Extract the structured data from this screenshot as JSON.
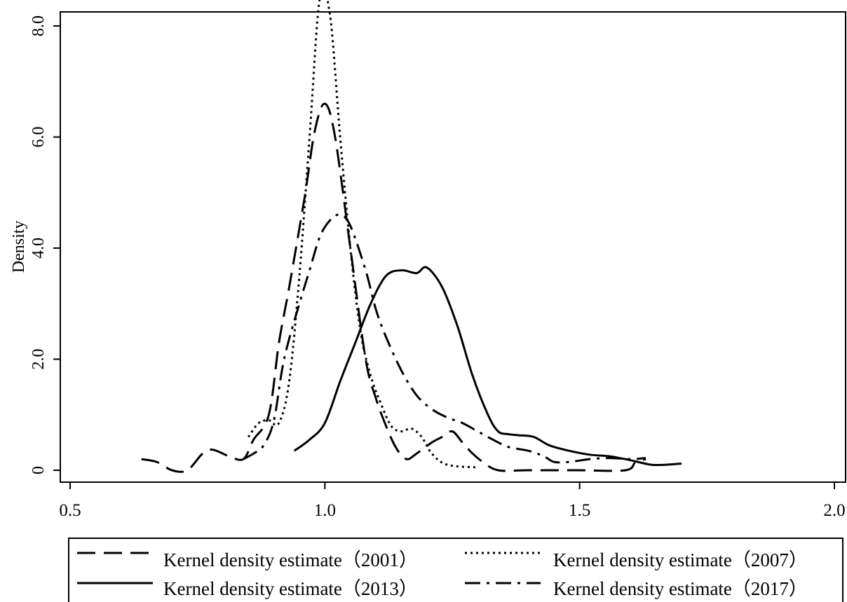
{
  "chart_data": {
    "type": "line",
    "title": "",
    "xlabel": "",
    "ylabel": "Density",
    "xlim": [
      0.5,
      2.0
    ],
    "ylim": [
      0,
      8.0
    ],
    "grid": false,
    "legend_position": "bottom",
    "x_ticks": [
      {
        "value": 0.5,
        "label": "0.5"
      },
      {
        "value": 1.0,
        "label": "1.0"
      },
      {
        "value": 1.5,
        "label": "1.5"
      },
      {
        "value": 2.0,
        "label": "2.0"
      }
    ],
    "y_ticks": [
      {
        "value": 0,
        "label": "0"
      },
      {
        "value": 2.0,
        "label": "2.0"
      },
      {
        "value": 4.0,
        "label": "4.0"
      },
      {
        "value": 6.0,
        "label": "6.0"
      },
      {
        "value": 8.0,
        "label": "8.0"
      }
    ],
    "series": [
      {
        "name": "Kernel density estimate（2001）",
        "line_style": "longdash",
        "points": [
          [
            0.64,
            0.2
          ],
          [
            0.67,
            0.15
          ],
          [
            0.7,
            0.0
          ],
          [
            0.73,
            0.0
          ],
          [
            0.76,
            0.3
          ],
          [
            0.78,
            0.37
          ],
          [
            0.81,
            0.26
          ],
          [
            0.84,
            0.2
          ],
          [
            0.86,
            0.55
          ],
          [
            0.89,
            1.0
          ],
          [
            0.91,
            2.3
          ],
          [
            0.93,
            3.3
          ],
          [
            0.96,
            4.9
          ],
          [
            0.98,
            6.1
          ],
          [
            1.0,
            6.6
          ],
          [
            1.02,
            6.0
          ],
          [
            1.05,
            4.0
          ],
          [
            1.08,
            2.0
          ],
          [
            1.1,
            1.3
          ],
          [
            1.12,
            0.8
          ],
          [
            1.14,
            0.4
          ],
          [
            1.16,
            0.2
          ],
          [
            1.18,
            0.3
          ],
          [
            1.21,
            0.5
          ],
          [
            1.23,
            0.6
          ],
          [
            1.25,
            0.7
          ],
          [
            1.27,
            0.5
          ],
          [
            1.29,
            0.3
          ],
          [
            1.31,
            0.15
          ],
          [
            1.34,
            0.0
          ],
          [
            1.4,
            0.0
          ],
          [
            1.5,
            0.0
          ],
          [
            1.59,
            0.0
          ],
          [
            1.61,
            0.15
          ],
          [
            1.63,
            0.2
          ]
        ]
      },
      {
        "name": "Kernel density estimate（2007）",
        "line_style": "dotted",
        "points": [
          [
            0.85,
            0.6
          ],
          [
            0.87,
            0.85
          ],
          [
            0.89,
            0.9
          ],
          [
            0.91,
            0.85
          ],
          [
            0.93,
            1.6
          ],
          [
            0.95,
            3.5
          ],
          [
            0.97,
            6.0
          ],
          [
            0.99,
            8.5
          ],
          [
            1.01,
            8.2
          ],
          [
            1.03,
            6.0
          ],
          [
            1.05,
            4.0
          ],
          [
            1.07,
            2.5
          ],
          [
            1.09,
            1.7
          ],
          [
            1.11,
            1.2
          ],
          [
            1.13,
            0.8
          ],
          [
            1.15,
            0.7
          ],
          [
            1.17,
            0.75
          ],
          [
            1.19,
            0.6
          ],
          [
            1.21,
            0.3
          ],
          [
            1.24,
            0.1
          ],
          [
            1.3,
            0.05
          ]
        ]
      },
      {
        "name": "Kernel density estimate（2013）",
        "line_style": "solid",
        "points": [
          [
            0.94,
            0.35
          ],
          [
            0.97,
            0.55
          ],
          [
            1.0,
            0.85
          ],
          [
            1.03,
            1.6
          ],
          [
            1.06,
            2.3
          ],
          [
            1.09,
            3.0
          ],
          [
            1.12,
            3.5
          ],
          [
            1.15,
            3.6
          ],
          [
            1.18,
            3.55
          ],
          [
            1.2,
            3.65
          ],
          [
            1.23,
            3.3
          ],
          [
            1.26,
            2.6
          ],
          [
            1.29,
            1.7
          ],
          [
            1.32,
            1.0
          ],
          [
            1.34,
            0.7
          ],
          [
            1.36,
            0.65
          ],
          [
            1.38,
            0.63
          ],
          [
            1.41,
            0.6
          ],
          [
            1.44,
            0.45
          ],
          [
            1.48,
            0.35
          ],
          [
            1.52,
            0.28
          ],
          [
            1.56,
            0.25
          ],
          [
            1.6,
            0.18
          ],
          [
            1.64,
            0.1
          ],
          [
            1.67,
            0.1
          ],
          [
            1.7,
            0.12
          ]
        ]
      },
      {
        "name": "Kernel density estimate（2017）",
        "line_style": "dashdot",
        "points": [
          [
            0.84,
            0.2
          ],
          [
            0.86,
            0.3
          ],
          [
            0.88,
            0.45
          ],
          [
            0.9,
            0.9
          ],
          [
            0.92,
            2.0
          ],
          [
            0.95,
            3.0
          ],
          [
            0.97,
            3.6
          ],
          [
            0.99,
            4.2
          ],
          [
            1.01,
            4.5
          ],
          [
            1.03,
            4.6
          ],
          [
            1.05,
            4.4
          ],
          [
            1.08,
            3.6
          ],
          [
            1.1,
            2.9
          ],
          [
            1.12,
            2.4
          ],
          [
            1.15,
            1.8
          ],
          [
            1.18,
            1.35
          ],
          [
            1.21,
            1.1
          ],
          [
            1.24,
            0.95
          ],
          [
            1.27,
            0.85
          ],
          [
            1.3,
            0.7
          ],
          [
            1.33,
            0.55
          ],
          [
            1.36,
            0.42
          ],
          [
            1.4,
            0.35
          ],
          [
            1.43,
            0.25
          ],
          [
            1.45,
            0.15
          ],
          [
            1.48,
            0.15
          ],
          [
            1.52,
            0.2
          ],
          [
            1.56,
            0.22
          ],
          [
            1.6,
            0.2
          ],
          [
            1.63,
            0.22
          ]
        ]
      }
    ]
  }
}
